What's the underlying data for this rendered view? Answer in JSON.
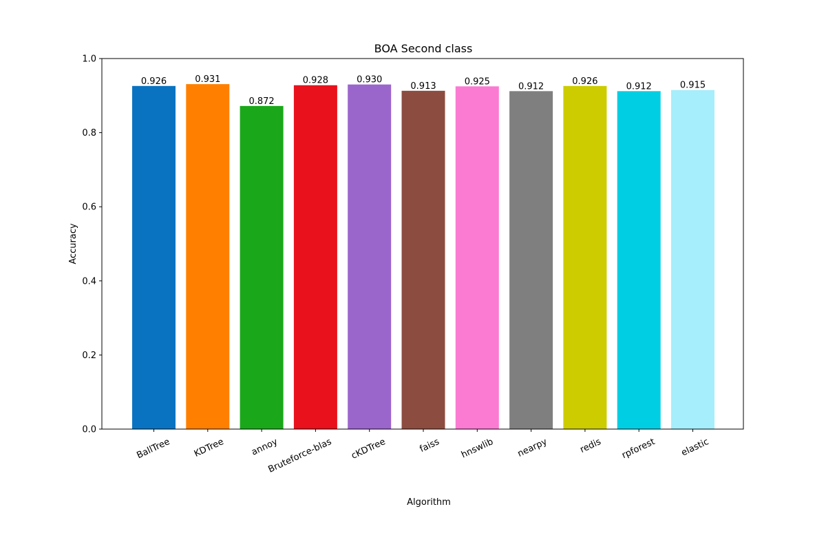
{
  "chart_data": {
    "type": "bar",
    "title": "BOA Second class",
    "xlabel": "Algorithm",
    "ylabel": "Accuracy",
    "ylim": [
      0,
      1.0
    ],
    "yticks": [
      "0.0",
      "0.2",
      "0.4",
      "0.6",
      "0.8",
      "1.0"
    ],
    "grid": false,
    "categories": [
      "BallTree",
      "KDTree",
      "annoy",
      "Bruteforce-blas",
      "cKDTree",
      "faiss",
      "hnswlib",
      "nearpy",
      "redis",
      "rpforest",
      "elastic"
    ],
    "values": [
      0.926,
      0.931,
      0.872,
      0.928,
      0.93,
      0.913,
      0.925,
      0.912,
      0.926,
      0.912,
      0.915
    ],
    "value_labels": [
      "0.926",
      "0.931",
      "0.872",
      "0.928",
      "0.930",
      "0.913",
      "0.925",
      "0.912",
      "0.926",
      "0.912",
      "0.915"
    ],
    "colors": [
      "#0a73c1",
      "#ff8000",
      "#1aa81a",
      "#e8111c",
      "#9b66cc",
      "#8c4c40",
      "#fb7bd3",
      "#7f7f7f",
      "#cccc00",
      "#00cfe3",
      "#a6eefb"
    ]
  }
}
